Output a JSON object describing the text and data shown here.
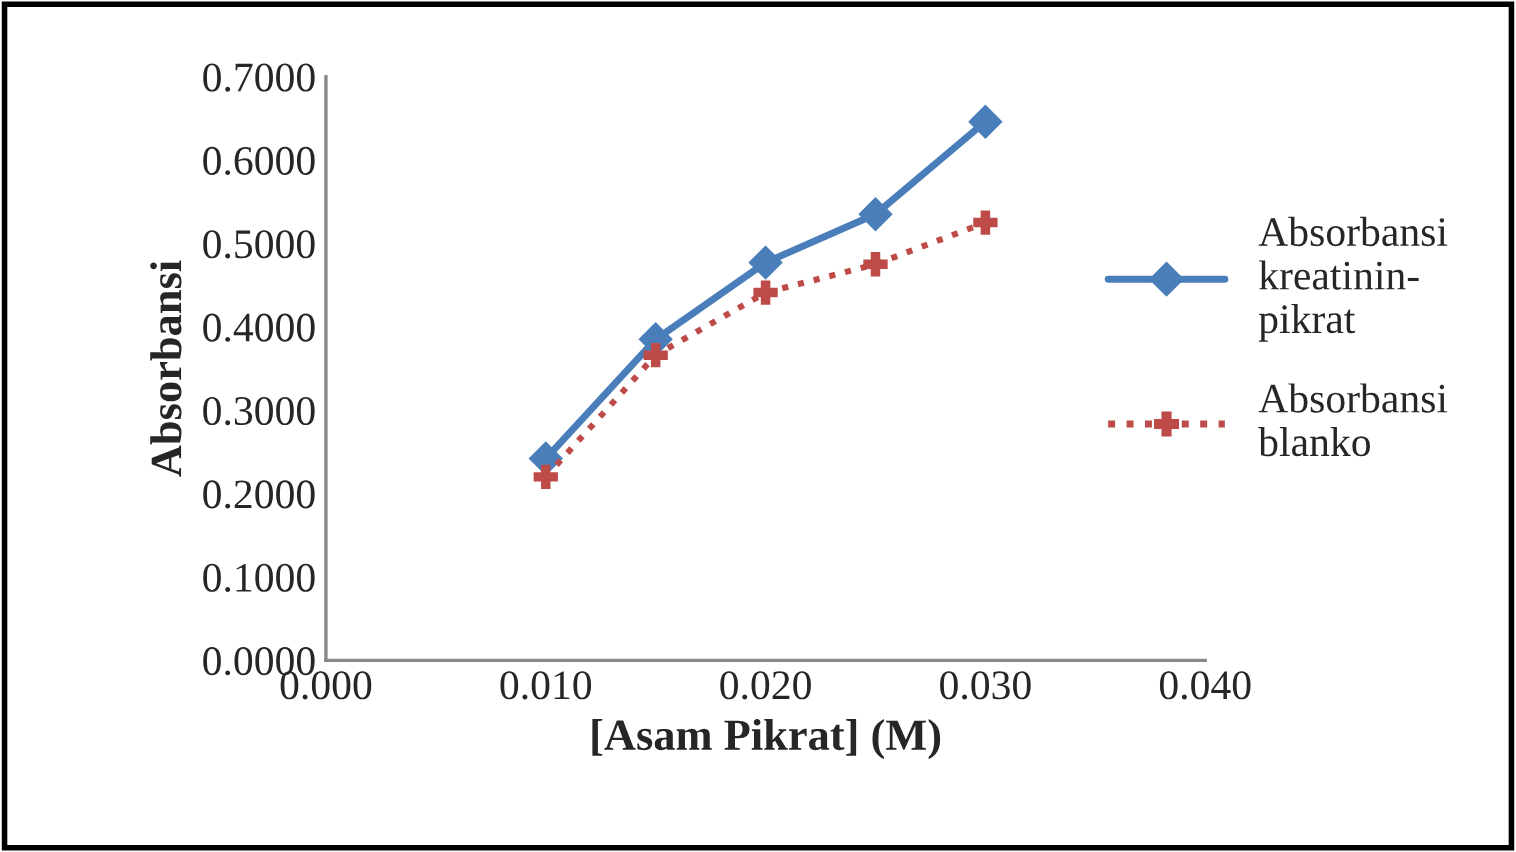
{
  "chart_data": {
    "type": "line",
    "xlabel": "[Asam Pikrat] (M)",
    "ylabel": "Absorbansi",
    "x": [
      0.01,
      0.015,
      0.02,
      0.025,
      0.03
    ],
    "series": [
      {
        "name": "Absorbansi kreatinin-pikrat",
        "color": "#4a7ebb",
        "values": [
          0.242,
          0.385,
          0.477,
          0.535,
          0.646
        ],
        "marker": "diamond",
        "line_style": "solid"
      },
      {
        "name": "Absorbansi blanko",
        "color": "#be4b48",
        "values": [
          0.22,
          0.366,
          0.441,
          0.475,
          0.525
        ],
        "marker": "cross",
        "line_style": "dotted"
      }
    ],
    "xlim": [
      0.0,
      0.04
    ],
    "xticks": [
      {
        "value": 0.0,
        "label": "0.000"
      },
      {
        "value": 0.01,
        "label": "0.010"
      },
      {
        "value": 0.02,
        "label": "0.020"
      },
      {
        "value": 0.03,
        "label": "0.030"
      },
      {
        "value": 0.04,
        "label": "0.040"
      }
    ],
    "ylim": [
      0.0,
      0.7
    ],
    "yticks": [
      {
        "value": 0.0,
        "label": "0.0000"
      },
      {
        "value": 0.1,
        "label": "0.1000"
      },
      {
        "value": 0.2,
        "label": "0.2000"
      },
      {
        "value": 0.3,
        "label": "0.3000"
      },
      {
        "value": 0.4,
        "label": "0.4000"
      },
      {
        "value": 0.5,
        "label": "0.5000"
      },
      {
        "value": 0.6,
        "label": "0.6000"
      },
      {
        "value": 0.7,
        "label": "0.7000"
      }
    ],
    "grid": false,
    "legend": "right"
  }
}
